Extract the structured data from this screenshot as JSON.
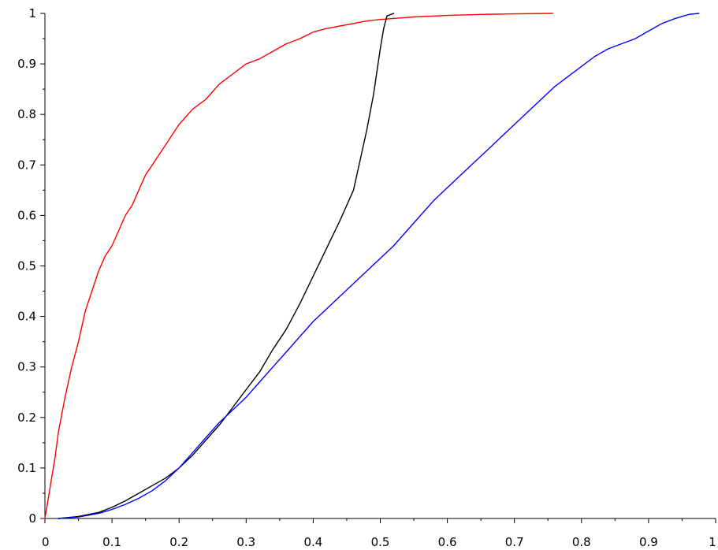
{
  "chart_data": {
    "type": "line",
    "title": "",
    "xlabel": "",
    "ylabel": "",
    "xlim": [
      0,
      1
    ],
    "ylim": [
      0,
      1
    ],
    "grid": false,
    "x_ticks": [
      0,
      0.1,
      0.2,
      0.3,
      0.4,
      0.5,
      0.6,
      0.7,
      0.8,
      0.9,
      1
    ],
    "x_tick_labels": [
      "0",
      "0.1",
      "0.2",
      "0.3",
      "0.4",
      "0.5",
      "0.6",
      "0.7",
      "0.8",
      "0.9",
      "1"
    ],
    "y_ticks": [
      0,
      0.1,
      0.2,
      0.3,
      0.4,
      0.5,
      0.6,
      0.7,
      0.8,
      0.9,
      1
    ],
    "y_tick_labels": [
      "0",
      "0.1",
      "0.2",
      "0.3",
      "0.4",
      "0.5",
      "0.6",
      "0.7",
      "0.8",
      "0.9",
      "1"
    ],
    "series": [
      {
        "color": "#ff0000",
        "x": [
          0,
          0.005,
          0.01,
          0.015,
          0.02,
          0.03,
          0.04,
          0.05,
          0.06,
          0.07,
          0.08,
          0.09,
          0.1,
          0.11,
          0.12,
          0.13,
          0.14,
          0.15,
          0.16,
          0.17,
          0.18,
          0.19,
          0.2,
          0.22,
          0.24,
          0.26,
          0.28,
          0.3,
          0.32,
          0.34,
          0.36,
          0.38,
          0.4,
          0.42,
          0.44,
          0.46,
          0.48,
          0.5,
          0.52,
          0.55,
          0.6,
          0.65,
          0.7,
          0.757
        ],
        "y": [
          0,
          0.04,
          0.08,
          0.12,
          0.17,
          0.24,
          0.3,
          0.35,
          0.41,
          0.45,
          0.49,
          0.52,
          0.54,
          0.57,
          0.6,
          0.62,
          0.65,
          0.68,
          0.7,
          0.72,
          0.74,
          0.76,
          0.78,
          0.81,
          0.83,
          0.86,
          0.88,
          0.9,
          0.91,
          0.925,
          0.94,
          0.95,
          0.963,
          0.97,
          0.975,
          0.98,
          0.985,
          0.988,
          0.99,
          0.993,
          0.996,
          0.998,
          0.999,
          1
        ]
      },
      {
        "color": "#000000",
        "x": [
          0.02,
          0.05,
          0.08,
          0.1,
          0.12,
          0.14,
          0.16,
          0.18,
          0.2,
          0.22,
          0.24,
          0.26,
          0.28,
          0.3,
          0.32,
          0.34,
          0.36,
          0.38,
          0.4,
          0.42,
          0.44,
          0.46,
          0.47,
          0.48,
          0.49,
          0.5,
          0.505,
          0.51,
          0.52
        ],
        "y": [
          0,
          0.004,
          0.012,
          0.022,
          0.035,
          0.05,
          0.065,
          0.08,
          0.1,
          0.125,
          0.155,
          0.185,
          0.22,
          0.255,
          0.29,
          0.335,
          0.375,
          0.425,
          0.48,
          0.535,
          0.59,
          0.65,
          0.71,
          0.77,
          0.84,
          0.93,
          0.97,
          0.995,
          1
        ]
      },
      {
        "color": "#0000ff",
        "x": [
          0.02,
          0.05,
          0.08,
          0.1,
          0.12,
          0.14,
          0.16,
          0.18,
          0.2,
          0.22,
          0.24,
          0.26,
          0.28,
          0.3,
          0.32,
          0.34,
          0.36,
          0.38,
          0.4,
          0.42,
          0.44,
          0.46,
          0.48,
          0.5,
          0.52,
          0.54,
          0.56,
          0.58,
          0.6,
          0.62,
          0.64,
          0.66,
          0.68,
          0.7,
          0.72,
          0.74,
          0.76,
          0.78,
          0.8,
          0.82,
          0.84,
          0.86,
          0.88,
          0.9,
          0.92,
          0.94,
          0.96,
          0.975
        ],
        "y": [
          0,
          0.003,
          0.01,
          0.018,
          0.028,
          0.04,
          0.055,
          0.075,
          0.1,
          0.13,
          0.16,
          0.19,
          0.215,
          0.24,
          0.27,
          0.3,
          0.33,
          0.36,
          0.39,
          0.415,
          0.44,
          0.465,
          0.49,
          0.515,
          0.54,
          0.57,
          0.6,
          0.63,
          0.655,
          0.68,
          0.705,
          0.73,
          0.755,
          0.78,
          0.805,
          0.83,
          0.855,
          0.875,
          0.895,
          0.915,
          0.93,
          0.94,
          0.95,
          0.965,
          0.98,
          0.99,
          0.998,
          1
        ]
      }
    ]
  }
}
